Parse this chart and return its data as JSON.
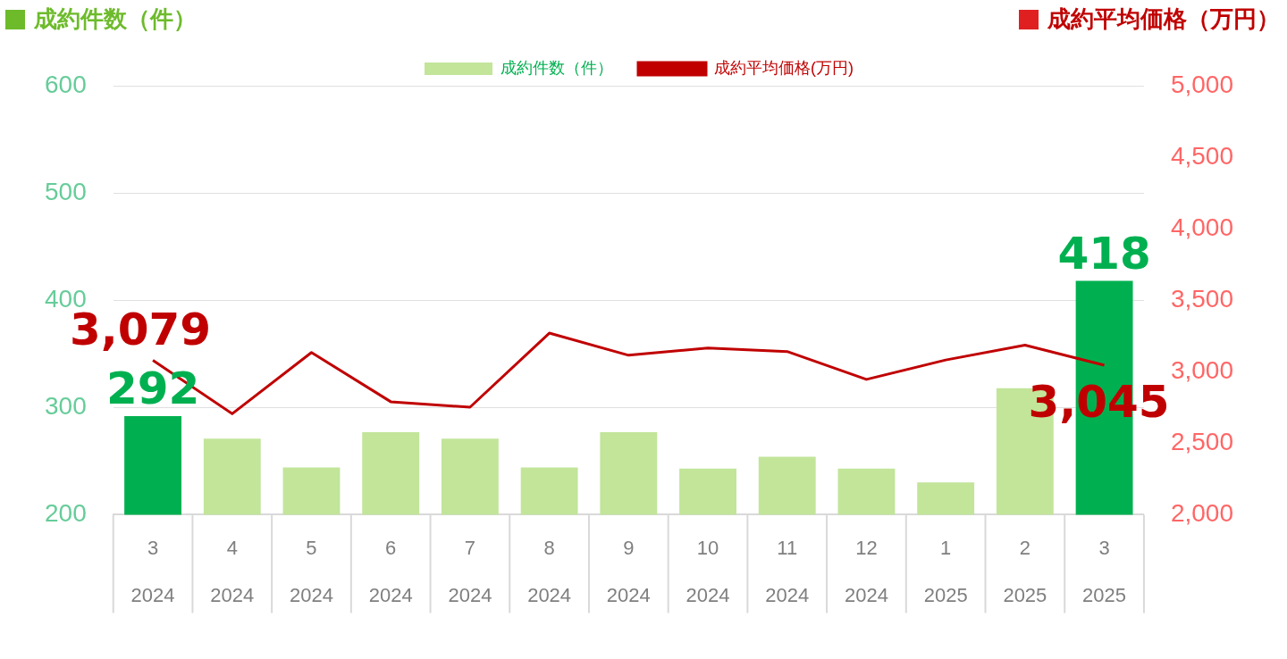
{
  "chart_data": {
    "type": "bar",
    "ylabel": "成約件数（件）",
    "y2label": "成約平均価格（万円）",
    "categories": [
      "3\n2024",
      "4\n2024",
      "5\n2024",
      "6\n2024",
      "7\n2024",
      "8\n2024",
      "9\n2024",
      "10\n2024",
      "11\n2024",
      "12\n2024",
      "1\n2025",
      "2\n2025",
      "3\n2025"
    ],
    "series": [
      {
        "name": "成約件数（件）",
        "colors": [
          "#00b050",
          "#c2e59a",
          "#c2e59a",
          "#c2e59a",
          "#c2e59a",
          "#c2e59a",
          "#c2e59a",
          "#c2e59a",
          "#c2e59a",
          "#c2e59a",
          "#c2e59a",
          "#c2e59a",
          "#00b050"
        ],
        "values": [
          292,
          271,
          244,
          277,
          271,
          244,
          277,
          243,
          254,
          243,
          230,
          318,
          418
        ],
        "value_labels": [
          "292",
          null,
          null,
          null,
          null,
          null,
          null,
          null,
          null,
          null,
          null,
          null,
          "418"
        ]
      },
      {
        "type": "line",
        "name": "成約平均価格(万円)",
        "color": "#c00000",
        "axis": "y2",
        "values": [
          3079,
          2706,
          3134,
          2790,
          2752,
          3270,
          3115,
          3166,
          3141,
          2946,
          3082,
          3186,
          3045
        ],
        "value_labels": [
          "3,079",
          null,
          null,
          null,
          null,
          null,
          null,
          null,
          null,
          null,
          null,
          null,
          "3,045"
        ]
      }
    ],
    "ylim": [
      200,
      600
    ],
    "yticks": [
      200,
      300,
      400,
      500,
      600
    ],
    "y2lim": [
      2000,
      5000
    ],
    "y2ticks": [
      {
        "value": 2000,
        "label": "2,000"
      },
      {
        "value": 2500,
        "label": "2,500"
      },
      {
        "value": 3000,
        "label": "3,000"
      },
      {
        "value": 3500,
        "label": "3,500"
      },
      {
        "value": 4000,
        "label": "4,000"
      },
      {
        "value": 4500,
        "label": "4,500"
      },
      {
        "value": 5000,
        "label": "5,000"
      }
    ],
    "grid": "y",
    "legend": "top",
    "marker": "none",
    "line_style": "solid"
  }
}
